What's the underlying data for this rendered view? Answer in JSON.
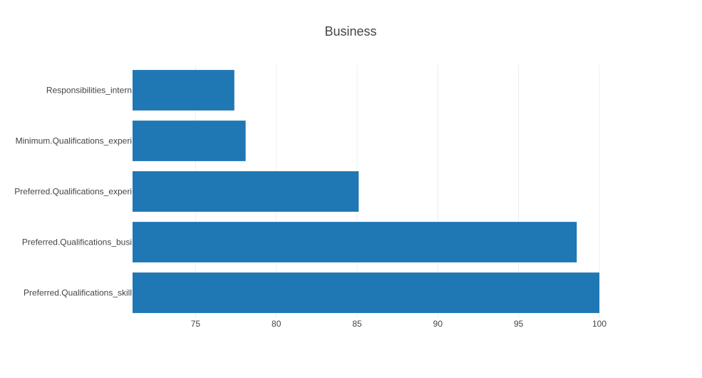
{
  "chart_data": {
    "type": "bar",
    "orientation": "horizontal",
    "title": "Business",
    "xlabel": "",
    "ylabel": "",
    "categories": [
      "Responsibilities_intern",
      "Minimum.Qualifications_experi",
      "Preferred.Qualifications_experi",
      "Preferred.Qualifications_busi",
      "Preferred.Qualifications_skill"
    ],
    "values": [
      77.4,
      78.1,
      85.1,
      98.6,
      100
    ],
    "xlim": [
      71.1,
      100
    ],
    "xticks": [
      75,
      80,
      85,
      90,
      95,
      100
    ],
    "grid": true,
    "bar_color": "#1f77b4"
  }
}
